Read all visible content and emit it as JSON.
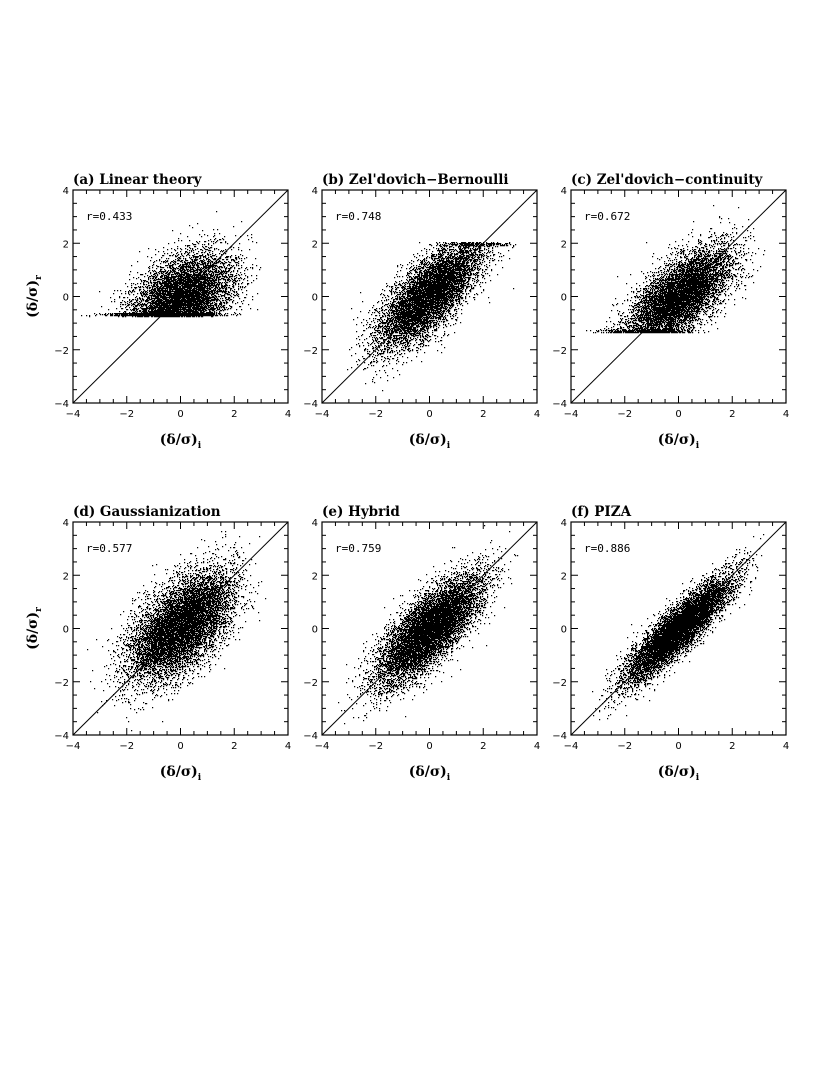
{
  "chart_data": [
    {
      "type": "scatter",
      "title": "(a) Linear theory",
      "r_label": "r=0.433",
      "r": 0.433,
      "xlabel_main": "(δ/σ)",
      "xlabel_sub": "i",
      "ylabel_main": "(δ/σ)",
      "ylabel_sub": "r",
      "show_ylabel": true,
      "xlim": [
        -4,
        4
      ],
      "ylim": [
        -4,
        4
      ],
      "xticks": [
        "−4",
        "−2",
        "0",
        "2",
        "4"
      ],
      "yticks": [
        "−4",
        "−2",
        "0",
        "2",
        "4"
      ],
      "reference_line": "y=x",
      "n_points": 9000,
      "distribution": {
        "x_mean": 0.0,
        "x_sd": 0.95,
        "y_mean": -0.1,
        "y_sd": 0.85,
        "y_floor": -0.72,
        "x_range": [
          -3.8,
          3.0
        ]
      }
    },
    {
      "type": "scatter",
      "title": "(b) Zel'dovich−Bernoulli",
      "r_label": "r=0.748",
      "r": 0.748,
      "xlabel_main": "(δ/σ)",
      "xlabel_sub": "i",
      "ylabel_main": "(δ/σ)",
      "ylabel_sub": "r",
      "show_ylabel": false,
      "xlim": [
        -4,
        4
      ],
      "ylim": [
        -4,
        4
      ],
      "xticks": [
        "−4",
        "−2",
        "0",
        "2",
        "4"
      ],
      "yticks": [
        "−4",
        "−2",
        "0",
        "2",
        "4"
      ],
      "reference_line": "y=x",
      "n_points": 9000,
      "distribution": {
        "x_mean": 0.0,
        "x_sd": 0.95,
        "y_mean": 0.1,
        "y_sd": 1.0,
        "y_cap": 2.05,
        "x_range": [
          -3.4,
          3.2
        ]
      }
    },
    {
      "type": "scatter",
      "title": "(c) Zel'dovich−continuity",
      "r_label": "r=0.672",
      "r": 0.672,
      "xlabel_main": "(δ/σ)",
      "xlabel_sub": "i",
      "ylabel_main": "(δ/σ)",
      "ylabel_sub": "r",
      "show_ylabel": false,
      "xlim": [
        -4,
        4
      ],
      "ylim": [
        -4,
        4
      ],
      "xticks": [
        "−4",
        "−2",
        "0",
        "2",
        "4"
      ],
      "yticks": [
        "−4",
        "−2",
        "0",
        "2",
        "4"
      ],
      "reference_line": "y=x",
      "n_points": 9000,
      "distribution": {
        "x_mean": 0.0,
        "x_sd": 0.95,
        "y_mean": 0.0,
        "y_sd": 0.9,
        "y_floor": -1.35,
        "x_range": [
          -3.7,
          3.3
        ]
      }
    },
    {
      "type": "scatter",
      "title": "(d) Gaussianization",
      "r_label": "r=0.577",
      "r": 0.577,
      "xlabel_main": "(δ/σ)",
      "xlabel_sub": "i",
      "ylabel_main": "(δ/σ)",
      "ylabel_sub": "r",
      "show_ylabel": true,
      "xlim": [
        -4,
        4
      ],
      "ylim": [
        -4,
        4
      ],
      "xticks": [
        "−4",
        "−2",
        "0",
        "2",
        "4"
      ],
      "yticks": [
        "−4",
        "−2",
        "0",
        "2",
        "4"
      ],
      "reference_line": "y=x",
      "n_points": 10000,
      "distribution": {
        "x_mean": 0.0,
        "x_sd": 0.95,
        "y_mean": 0.1,
        "y_sd": 1.0,
        "x_range": [
          -3.6,
          3.3
        ]
      }
    },
    {
      "type": "scatter",
      "title": "(e) Hybrid",
      "r_label": "r=0.759",
      "r": 0.759,
      "xlabel_main": "(δ/σ)",
      "xlabel_sub": "i",
      "ylabel_main": "(δ/σ)",
      "ylabel_sub": "r",
      "show_ylabel": false,
      "xlim": [
        -4,
        4
      ],
      "ylim": [
        -4,
        4
      ],
      "xticks": [
        "−4",
        "−2",
        "0",
        "2",
        "4"
      ],
      "yticks": [
        "−4",
        "−2",
        "0",
        "2",
        "4"
      ],
      "reference_line": "y=x",
      "n_points": 10000,
      "distribution": {
        "x_mean": 0.0,
        "x_sd": 0.95,
        "y_mean": 0.0,
        "y_sd": 1.0,
        "x_range": [
          -3.6,
          3.3
        ]
      }
    },
    {
      "type": "scatter",
      "title": "(f) PIZA",
      "r_label": "r=0.886",
      "r": 0.886,
      "xlabel_main": "(δ/σ)",
      "xlabel_sub": "i",
      "ylabel_main": "(δ/σ)",
      "ylabel_sub": "r",
      "show_ylabel": false,
      "xlim": [
        -4,
        4
      ],
      "ylim": [
        -4,
        4
      ],
      "xticks": [
        "−4",
        "−2",
        "0",
        "2",
        "4"
      ],
      "yticks": [
        "−4",
        "−2",
        "0",
        "2",
        "4"
      ],
      "reference_line": "y=x",
      "n_points": 10000,
      "distribution": {
        "x_mean": 0.0,
        "x_sd": 0.95,
        "y_mean": 0.0,
        "y_sd": 0.95,
        "x_range": [
          -3.3,
          3.2
        ]
      }
    }
  ],
  "colors": {
    "points": "#000000",
    "axes": "#000000",
    "background": "#ffffff"
  }
}
